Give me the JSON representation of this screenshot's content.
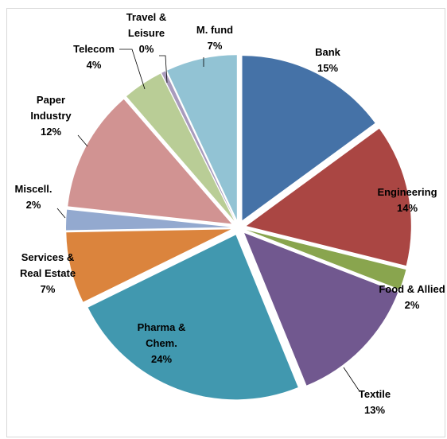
{
  "chart_data": {
    "type": "pie",
    "exploded": true,
    "start_angle_deg": 0,
    "direction": "clockwise",
    "slices": [
      {
        "label_lines": [
          "Bank"
        ],
        "pct_label": "15%",
        "value": 15,
        "color": "#4572A7"
      },
      {
        "label_lines": [
          "Engineering"
        ],
        "pct_label": "14%",
        "value": 14,
        "color": "#AA4643"
      },
      {
        "label_lines": [
          "Food & Allied"
        ],
        "pct_label": "2%",
        "value": 2,
        "color": "#89A54E"
      },
      {
        "label_lines": [
          "Textile"
        ],
        "pct_label": "13%",
        "value": 13,
        "color": "#71588F"
      },
      {
        "label_lines": [
          "Pharma &",
          "Chem."
        ],
        "pct_label": "24%",
        "value": 24,
        "color": "#4198AF"
      },
      {
        "label_lines": [
          "Services &",
          "Real Estate"
        ],
        "pct_label": "7%",
        "value": 7,
        "color": "#DB843D"
      },
      {
        "label_lines": [
          "Miscell."
        ],
        "pct_label": "2%",
        "value": 2,
        "color": "#93A9CF"
      },
      {
        "label_lines": [
          "Paper",
          "Industry"
        ],
        "pct_label": "12%",
        "value": 12,
        "color": "#D19392"
      },
      {
        "label_lines": [
          "Telecom"
        ],
        "pct_label": "4%",
        "value": 4,
        "color": "#B9CD96"
      },
      {
        "label_lines": [
          "Travel &",
          "Leisure"
        ],
        "pct_label": "0%",
        "value": 0.4,
        "color": "#A99BBD"
      },
      {
        "label_lines": [
          "M. fund"
        ],
        "pct_label": "7%",
        "value": 7,
        "color": "#92C3D4"
      }
    ]
  }
}
